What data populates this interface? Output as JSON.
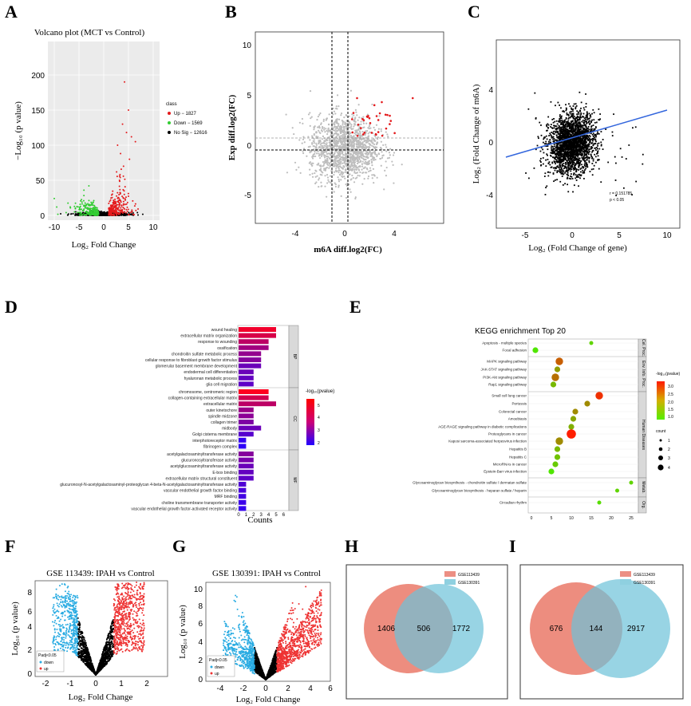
{
  "panels": {
    "A": {
      "label": "A",
      "title": "Volcano plot (MCT vs Control)",
      "xlabel": "Log₂ Fold Change",
      "ylabel": "−Log₁₀ (p value)",
      "legend_title": "class",
      "legend": [
        {
          "label": "Up − 1827",
          "color": "#e41a1c"
        },
        {
          "label": "Down − 1569",
          "color": "#33cc33"
        },
        {
          "label": "No Sig − 12616",
          "color": "#000000"
        }
      ],
      "xticks": [
        "-10",
        "-5",
        "0",
        "5",
        "10"
      ],
      "yticks": [
        "0",
        "50",
        "100",
        "150",
        "200"
      ]
    },
    "B": {
      "label": "B",
      "xlabel": "m6A diff.log2(FC)",
      "ylabel": "Exp diff.log2(FC)",
      "xticks": [
        "-4",
        "0",
        "4"
      ],
      "yticks": [
        "-5",
        "0",
        "5",
        "10"
      ]
    },
    "C": {
      "label": "C",
      "xlabel": "Log₂ (Fold Change of gene)",
      "ylabel": "Log₂ (Fold Change of m6A)",
      "xticks": [
        "-5",
        "0",
        "5",
        "10"
      ],
      "yticks": [
        "-4",
        "0",
        "4"
      ],
      "annotation_r": "r = 0.151785",
      "annotation_p": "p < 0.05"
    },
    "D": {
      "label": "D",
      "xlabel": "Counts",
      "xticks": [
        "0",
        "1",
        "2",
        "3",
        "4",
        "5",
        "6"
      ],
      "legend_title": "-log₁₀(pvalue)",
      "legend_ticks": [
        "5",
        "4",
        "3",
        "2"
      ],
      "groups": [
        "BP",
        "CC",
        "MF"
      ]
    },
    "E": {
      "label": "E",
      "title": "KEGG enrichment Top 20",
      "xticks": [
        "0",
        "5",
        "10",
        "15",
        "20",
        "25"
      ],
      "legend_color_title": "-log₁₀(pvalue)",
      "legend_color_ticks": [
        "3.0",
        "2.5",
        "2.0",
        "1.5",
        "1.0"
      ],
      "legend_size_title": "count",
      "legend_size_ticks": [
        "1",
        "2",
        "3",
        "4"
      ],
      "groups": [
        "Cel. Proc.",
        "Env. Info. Proc.",
        "Human Diseases",
        "Metab.",
        "Org."
      ]
    },
    "F": {
      "label": "F",
      "title": "GSE 113439: IPAH vs Control",
      "xlabel": "Log₂ Fold Change",
      "ylabel": "Log₁₀ (p value)",
      "xticks": [
        "-2",
        "-1",
        "0",
        "1",
        "2"
      ],
      "yticks": [
        "0",
        "2",
        "4",
        "6",
        "8"
      ],
      "legend_title": "Padj<0.05",
      "legend": [
        {
          "label": "down",
          "color": "#29abe2"
        },
        {
          "label": "up",
          "color": "#ee3333"
        }
      ]
    },
    "G": {
      "label": "G",
      "title": "GSE 130391: IPAH vs Control",
      "xlabel": "Log₂ Fold Change",
      "ylabel": "Log₁₀ (p value)",
      "xticks": [
        "-4",
        "-2",
        "0",
        "2",
        "4",
        "6"
      ],
      "yticks": [
        "0",
        "2",
        "4",
        "6",
        "8",
        "10"
      ],
      "legend_title": "Padj<0.05",
      "legend": [
        {
          "label": "down",
          "color": "#29abe2"
        },
        {
          "label": "up",
          "color": "#ee3333"
        }
      ]
    },
    "H": {
      "label": "H",
      "legend": [
        {
          "label": "GSE113439",
          "color": "#ec8f84"
        },
        {
          "label": "GSE130391",
          "color": "#8fd0e0"
        }
      ],
      "left": "1406",
      "overlap": "506",
      "right": "1772"
    },
    "I": {
      "label": "I",
      "legend": [
        {
          "label": "GSE113439",
          "color": "#ec8f84"
        },
        {
          "label": "GSE130391",
          "color": "#8fd0e0"
        }
      ],
      "left": "676",
      "overlap": "144",
      "right": "2917"
    }
  },
  "chart_data": [
    {
      "panel": "D",
      "type": "bar",
      "orientation": "horizontal",
      "categories": [
        "wound healing",
        "extracellular matrix organization",
        "response to wounding",
        "ossification",
        "chondroitin sulfate metabolic process",
        "cellular response to fibroblast growth factor stimulus",
        "glomerular basement membrane development",
        "endodermal cell differentiation",
        "hyaluronan metabolic process",
        "glia cell migration",
        "chromosome, centromeric region",
        "collagen-containing extracellular matrix",
        "extracellular matrix",
        "outer kinetochore",
        "spindle midzone",
        "collagen trimer",
        "midbody",
        "Golgi cisterna membrane",
        "interphotoreceptor matrix",
        "fibrinogen complex",
        "acetylgalactosaminyltransferase activity",
        "glucuronosyltransferase activity",
        "acetylglucosaminyltransferase activity",
        "E-box binding",
        "extracellular matrix structural constituent",
        "glucuronosyl-N-acetylgalactosaminyl-proteoglycan 4-beta-N-acetylgalactosaminyltransferase activity",
        "vascular endothelial growth factor binding",
        "MRF binding",
        "choline transmembrane transporter activity",
        "vascular endothelial growth factor-activated receptor activity"
      ],
      "groups": [
        "BP",
        "BP",
        "BP",
        "BP",
        "BP",
        "BP",
        "BP",
        "BP",
        "BP",
        "BP",
        "CC",
        "CC",
        "CC",
        "CC",
        "CC",
        "CC",
        "CC",
        "CC",
        "CC",
        "CC",
        "MF",
        "MF",
        "MF",
        "MF",
        "MF",
        "MF",
        "MF",
        "MF",
        "MF",
        "MF"
      ],
      "values": [
        5,
        5,
        4,
        4,
        3,
        3,
        3,
        2,
        2,
        2,
        4,
        4,
        5,
        2,
        2,
        2,
        3,
        2,
        1,
        1,
        2,
        2,
        2,
        2,
        2,
        1,
        1,
        1,
        1,
        1
      ],
      "neglog10p": [
        5.0,
        4.6,
        4.2,
        3.8,
        3.6,
        3.4,
        3.0,
        3.0,
        2.9,
        2.8,
        5.2,
        4.5,
        4.2,
        3.7,
        3.5,
        3.3,
        3.0,
        2.7,
        2.2,
        2.1,
        3.4,
        3.2,
        3.0,
        2.9,
        2.8,
        2.6,
        2.5,
        2.4,
        2.3,
        2.2
      ],
      "xlabel": "Counts"
    },
    {
      "panel": "E",
      "type": "scatter",
      "categories": [
        "Apoptosis - multiple species",
        "Focal adhesion",
        "MAPK signaling pathway",
        "JAK-STAT signaling pathway",
        "PI3K-Akt signaling pathway",
        "Rap1 signaling pathway",
        "Small cell lung cancer",
        "Pertussis",
        "Colorectal cancer",
        "Amoebiasis",
        "AGE-RAGE signaling pathway in diabetic complications",
        "Proteoglycans in cancer",
        "Kaposi sarcoma-associated herpesvirus infection",
        "Hepatitis B",
        "Hepatitis C",
        "MicroRNAs in cancer",
        "Epstein-Barr virus infection",
        "Glycosaminoglycan biosynthesis - chondroitin sulfate / dermatan sulfate",
        "Glycosaminoglycan biosynthesis - heparan sulfate / heparin",
        "Circadian rhythm"
      ],
      "x": [
        15,
        1,
        7,
        6.5,
        6,
        5.5,
        17,
        14,
        11,
        10.5,
        10,
        10,
        7,
        6.5,
        6.5,
        6,
        5,
        25,
        21.5,
        17
      ],
      "neglog10p": [
        1.2,
        1.0,
        2.5,
        1.8,
        2.3,
        1.5,
        3.0,
        2.0,
        2.0,
        1.7,
        1.6,
        3.2,
        2.0,
        1.5,
        1.4,
        1.3,
        1.0,
        1.2,
        1.2,
        1.1
      ],
      "count": [
        1,
        2,
        3,
        2,
        3,
        2,
        3,
        2,
        2,
        2,
        2,
        4,
        3,
        2,
        2,
        2,
        2,
        1,
        1,
        1
      ],
      "title": "KEGG enrichment Top 20"
    },
    {
      "panel": "H",
      "type": "venn",
      "sets": [
        "GSE113439",
        "GSE130391"
      ],
      "values": {
        "left_only": 1406,
        "overlap": 506,
        "right_only": 1772
      }
    },
    {
      "panel": "I",
      "type": "venn",
      "sets": [
        "GSE113439",
        "GSE130391"
      ],
      "values": {
        "left_only": 676,
        "overlap": 144,
        "right_only": 2917
      }
    }
  ]
}
